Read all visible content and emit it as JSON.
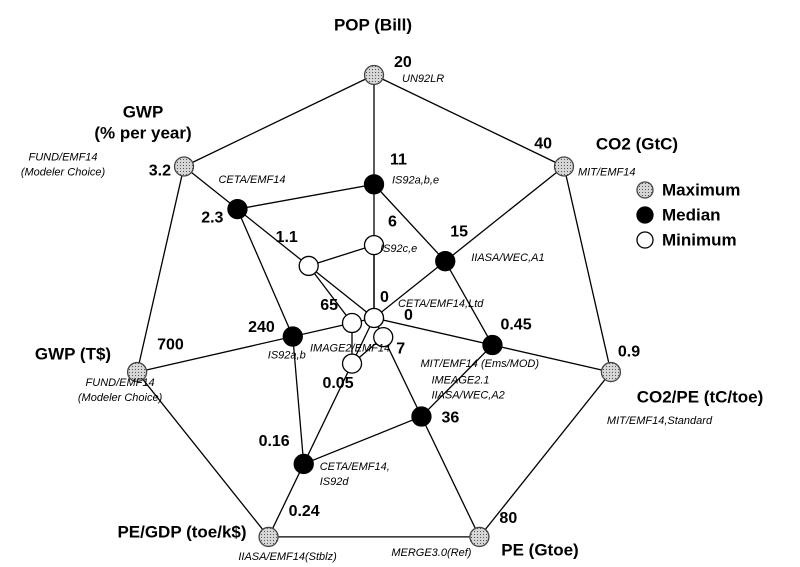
{
  "chart_data": {
    "type": "radar",
    "axes": [
      {
        "label": [
          "POP (Bill)"
        ],
        "lim": [
          0,
          20
        ]
      },
      {
        "label": [
          "CO2 (GtC)"
        ],
        "lim": [
          0,
          40
        ]
      },
      {
        "label": [
          "CO2/PE (tC/toe)"
        ],
        "lim": [
          0,
          0.9
        ]
      },
      {
        "label": [
          "PE (Gtoe)"
        ],
        "lim": [
          0,
          80
        ]
      },
      {
        "label": [
          "PE/GDP (toe/k$)"
        ],
        "lim": [
          0,
          0.24
        ]
      },
      {
        "label": [
          "GWP (T$)"
        ],
        "lim": [
          0,
          700
        ]
      },
      {
        "label": [
          "GWP",
          "(% per year)"
        ],
        "lim": [
          0,
          3.2
        ]
      }
    ],
    "series": [
      {
        "name": "Maximum",
        "color": "#bdbdbd",
        "values": [
          20,
          40,
          0.9,
          80,
          0.24,
          700,
          3.2
        ],
        "notes": [
          [
            "UN92LR"
          ],
          [
            "MIT/EMF14"
          ],
          [
            "MIT/EMF14,Standard"
          ],
          [
            "MERGE3.0(Ref)"
          ],
          [
            "IIASA/EMF14(Stblz)"
          ],
          [
            "FUND/EMF14",
            "(Modeler Choice)"
          ],
          [
            "FUND/EMF14",
            "(Modeler Choice)"
          ]
        ]
      },
      {
        "name": "Median",
        "color": "#000000",
        "values": [
          11,
          15,
          0.45,
          36,
          0.16,
          240,
          2.3
        ],
        "notes": [
          [
            "IS92a,b,e"
          ],
          [
            "IIASA/WEC,A1"
          ],
          [
            "MIT/EMF14 (Ems/MOD)"
          ],
          [
            "IMEAGE2.1",
            "IIASA/WEC,A2"
          ],
          [
            "CETA/EMF14,",
            "IS92d"
          ],
          [
            "IS92a,b"
          ],
          [
            "CETA/EMF14"
          ]
        ]
      },
      {
        "name": "Minimum",
        "color": "#ffffff",
        "values": [
          6,
          0,
          0,
          7,
          0.05,
          65,
          1.1
        ],
        "notes": [
          [
            "IS92c,e"
          ],
          [
            "CETA/EMF14,Ltd"
          ],
          null,
          null,
          [
            "IMAGE2/EMF14"
          ],
          null,
          null
        ]
      }
    ]
  }
}
